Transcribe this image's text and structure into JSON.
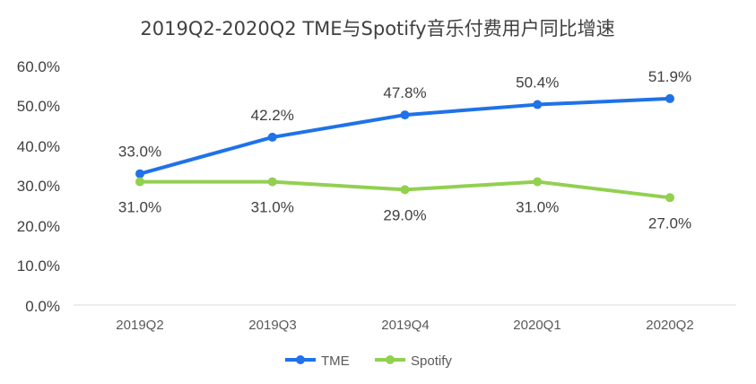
{
  "chart_data": {
    "type": "line",
    "title": "2019Q2-2020Q2 TME与Spotify音乐付费用户同比增速",
    "categories": [
      "2019Q2",
      "2019Q3",
      "2019Q4",
      "2020Q1",
      "2020Q2"
    ],
    "series": [
      {
        "name": "TME",
        "values": [
          33.0,
          42.2,
          47.8,
          50.4,
          51.9
        ],
        "labels": [
          "33.0%",
          "42.2%",
          "47.8%",
          "50.4%",
          "51.9%"
        ],
        "label_position": "above",
        "color": "#1F72E8"
      },
      {
        "name": "Spotify",
        "values": [
          31.0,
          31.0,
          29.0,
          31.0,
          27.0
        ],
        "labels": [
          "31.0%",
          "31.0%",
          "29.0%",
          "31.0%",
          "27.0%"
        ],
        "label_position": "below",
        "color": "#92D050"
      }
    ],
    "ylim": [
      0,
      60
    ],
    "yticks": [
      "0.0%",
      "10.0%",
      "20.0%",
      "30.0%",
      "40.0%",
      "50.0%",
      "60.0%"
    ],
    "xlabel": "",
    "ylabel": "",
    "grid": false,
    "legend_position": "bottom"
  }
}
